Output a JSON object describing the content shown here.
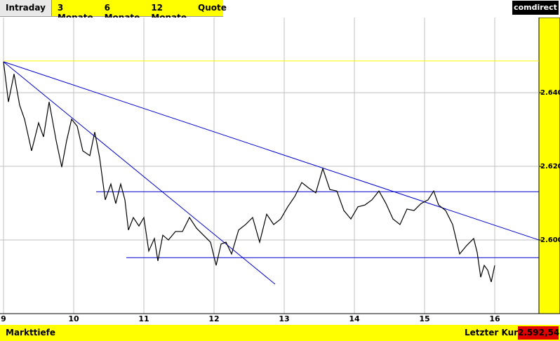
{
  "tabs": [
    "Intraday",
    "3 Monate",
    "6 Monate",
    "12 Monate",
    "Quote"
  ],
  "logo": "comdirect",
  "footer": {
    "left": "Markttiefe",
    "label": "Letzter Kurs",
    "last_price": "2.592,54"
  },
  "chart_data": {
    "type": "line",
    "x": [
      9,
      9.07,
      9.15,
      9.23,
      9.3,
      9.4,
      9.5,
      9.57,
      9.65,
      9.75,
      9.83,
      9.9,
      9.97,
      10.05,
      10.13,
      10.23,
      10.3,
      10.37,
      10.45,
      10.53,
      10.6,
      10.67,
      10.73,
      10.78,
      10.85,
      10.93,
      11,
      11.07,
      11.15,
      11.2,
      11.27,
      11.35,
      11.45,
      11.55,
      11.65,
      11.75,
      11.85,
      11.95,
      12.03,
      12.1,
      12.17,
      12.25,
      12.35,
      12.45,
      12.55,
      12.65,
      12.75,
      12.85,
      12.95,
      13.05,
      13.15,
      13.25,
      13.35,
      13.45,
      13.55,
      13.65,
      13.75,
      13.85,
      13.95,
      14.05,
      14.15,
      14.25,
      14.35,
      14.45,
      14.55,
      14.65,
      14.75,
      14.85,
      14.95,
      15.05,
      15.13,
      15.2,
      15.3,
      15.4,
      15.5,
      15.6,
      15.7,
      15.75,
      15.8,
      15.85,
      15.9,
      15.95,
      16
    ],
    "series": [
      {
        "color": "#000000",
        "values": [
          2.6484,
          2.6375,
          2.6451,
          2.6366,
          2.6328,
          2.6242,
          2.6318,
          2.628,
          2.6375,
          2.627,
          2.6198,
          2.627,
          2.6328,
          2.6309,
          2.6242,
          2.6229,
          2.6293,
          2.6223,
          2.6109,
          2.6152,
          2.6099,
          2.6152,
          2.6109,
          2.6027,
          2.6061,
          2.6038,
          2.6061,
          2.597,
          2.6004,
          2.5943,
          2.6013,
          2.6,
          2.6023,
          2.6023,
          2.6061,
          2.6032,
          2.6013,
          2.5994,
          2.5931,
          2.5989,
          2.5994,
          2.5962,
          2.6027,
          2.6042,
          2.6061,
          2.5994,
          2.607,
          2.6042,
          2.6057,
          2.609,
          2.6118,
          2.6156,
          2.6141,
          2.6128,
          2.6194,
          2.6137,
          2.6133,
          2.608,
          2.6057,
          2.609,
          2.6095,
          2.6109,
          2.6133,
          2.6099,
          2.6057,
          2.6042,
          2.6084,
          2.608,
          2.6099,
          2.6109,
          2.6133,
          2.6095,
          2.608,
          2.6042,
          2.5962,
          2.5985,
          2.6004,
          2.5966,
          2.5899,
          2.5931,
          2.5918,
          2.5886,
          2.5931
        ]
      }
    ],
    "trend_lines": [
      {
        "color": "#ffff00",
        "x": [
          9,
          16.63
        ],
        "y": [
          2.6486,
          2.6486
        ]
      },
      {
        "color": "#0000cc",
        "x": [
          9,
          16.63
        ],
        "y": [
          2.6484,
          2.6
        ]
      },
      {
        "color": "#0000cc",
        "x": [
          9,
          12.87
        ],
        "y": [
          2.6484,
          2.588
        ]
      },
      {
        "color": "#0000cc",
        "x": [
          10.32,
          16.63
        ],
        "y": [
          2.6131,
          2.6131
        ]
      },
      {
        "color": "#0000cc",
        "x": [
          10.75,
          16.63
        ],
        "y": [
          2.5952,
          2.5952
        ]
      }
    ],
    "xlim": [
      9,
      16.63
    ],
    "xticks": [
      9,
      10,
      11,
      12,
      13,
      14,
      15,
      16
    ],
    "ylim": [
      2.58,
      2.6604
    ],
    "yticks": [
      {
        "value": 2.6,
        "label": "2.600"
      },
      {
        "value": 2.62,
        "label": "2.620"
      },
      {
        "value": 2.64,
        "label": "2.640"
      }
    ],
    "grid": true
  }
}
